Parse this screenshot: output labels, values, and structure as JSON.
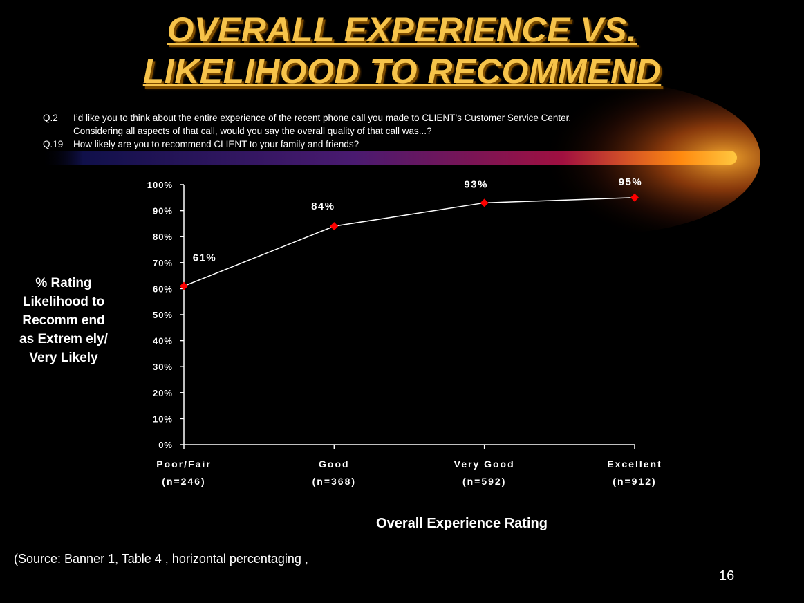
{
  "slide": {
    "title_line1": "OVERALL EXPERIENCE VS.",
    "title_line2": "LIKELIHOOD TO RECOMMEND",
    "questions": [
      {
        "num": "Q.2",
        "text": "I’d like you to think about the entire experience of the recent phone call you made to CLIENT’s Customer Service Center."
      },
      {
        "num": "",
        "text": "Considering all aspects of that call, would you say the overall quality of that call was...?"
      },
      {
        "num": "Q.19",
        "text": "How likely are you to recommend CLIENT to your family and friends?"
      }
    ],
    "source": "(Source:  Banner 1, Table 4 , horizontal percentaging ,",
    "page_number": "16"
  },
  "colors": {
    "background": "#000000",
    "title": "#f6c34a",
    "marker": "#ff0000",
    "line": "#ffffff",
    "swoosh_start": "#10104a",
    "swoosh_mid": "#8a1a50",
    "swoosh_end": "#ffb020"
  },
  "chart_data": {
    "type": "line",
    "categories": [
      "Poor/Fair",
      "Good",
      "Very Good",
      "Excellent"
    ],
    "category_n": [
      "(n=246)",
      "(n=368)",
      "(n=592)",
      "(n=912)"
    ],
    "series": [
      {
        "values": [
          61,
          84,
          93,
          95
        ]
      }
    ],
    "data_labels": [
      "61%",
      "84%",
      "93%",
      "95%"
    ],
    "ylim": [
      0,
      100
    ],
    "yticks": [
      "0%",
      "10%",
      "20%",
      "30%",
      "40%",
      "50%",
      "60%",
      "70%",
      "80%",
      "90%",
      "100%"
    ],
    "ylabel_lines": [
      "% Rating",
      "Likelihood to",
      "Recomm end",
      "as Extrem ely/",
      "Very Likely"
    ],
    "xlabel": "Overall Experience Rating",
    "grid": false,
    "legend": "none"
  }
}
